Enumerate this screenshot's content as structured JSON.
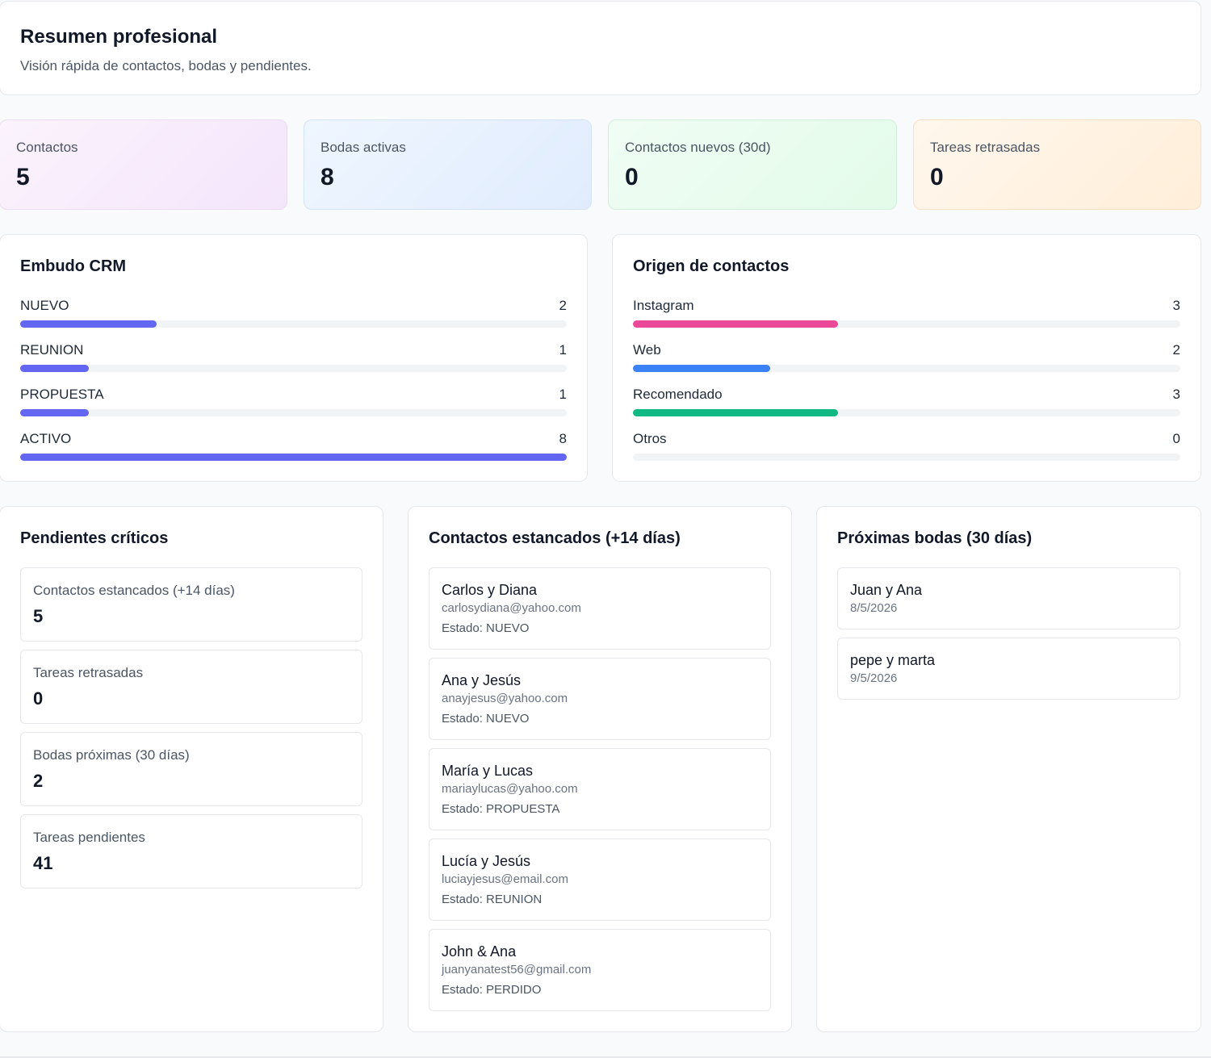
{
  "header": {
    "title": "Resumen profesional",
    "subtitle": "Visión rápida de contactos, bodas y pendientes."
  },
  "stats": [
    {
      "label": "Contactos",
      "value": "5"
    },
    {
      "label": "Bodas activas",
      "value": "8"
    },
    {
      "label": "Contactos nuevos (30d)",
      "value": "0"
    },
    {
      "label": "Tareas retrasadas",
      "value": "0"
    }
  ],
  "funnel": {
    "title": "Embudo CRM",
    "max": 8,
    "color": "#6366f1",
    "items": [
      {
        "label": "NUEVO",
        "count": 2
      },
      {
        "label": "REUNION",
        "count": 1
      },
      {
        "label": "PROPUESTA",
        "count": 1
      },
      {
        "label": "ACTIVO",
        "count": 8
      }
    ]
  },
  "origin": {
    "title": "Origen de contactos",
    "max": 8,
    "items": [
      {
        "label": "Instagram",
        "count": 3,
        "color": "#ec4899"
      },
      {
        "label": "Web",
        "count": 2,
        "color": "#3b82f6"
      },
      {
        "label": "Recomendado",
        "count": 3,
        "color": "#10b981"
      },
      {
        "label": "Otros",
        "count": 0,
        "color": "#9ca3af"
      }
    ]
  },
  "pending": {
    "title": "Pendientes críticos",
    "items": [
      {
        "label": "Contactos estancados (+14 días)",
        "value": "5"
      },
      {
        "label": "Tareas retrasadas",
        "value": "0"
      },
      {
        "label": "Bodas próximas (30 días)",
        "value": "2"
      },
      {
        "label": "Tareas pendientes",
        "value": "41"
      }
    ]
  },
  "stalled": {
    "title": "Contactos estancados (+14 días)",
    "items": [
      {
        "name": "Carlos y Diana",
        "email": "carlosydiana@yahoo.com",
        "status": "Estado: NUEVO"
      },
      {
        "name": "Ana y Jesús",
        "email": "anayjesus@yahoo.com",
        "status": "Estado: NUEVO"
      },
      {
        "name": "María y Lucas",
        "email": "mariaylucas@yahoo.com",
        "status": "Estado: PROPUESTA"
      },
      {
        "name": "Lucía y Jesús",
        "email": "luciayjesus@email.com",
        "status": "Estado: REUNION"
      },
      {
        "name": "John & Ana",
        "email": "juanyanatest56@gmail.com",
        "status": "Estado: PERDIDO"
      }
    ]
  },
  "upcoming": {
    "title": "Próximas bodas (30 días)",
    "items": [
      {
        "name": "Juan y Ana",
        "date": "8/5/2026"
      },
      {
        "name": "pepe y marta",
        "date": "9/5/2026"
      }
    ]
  }
}
